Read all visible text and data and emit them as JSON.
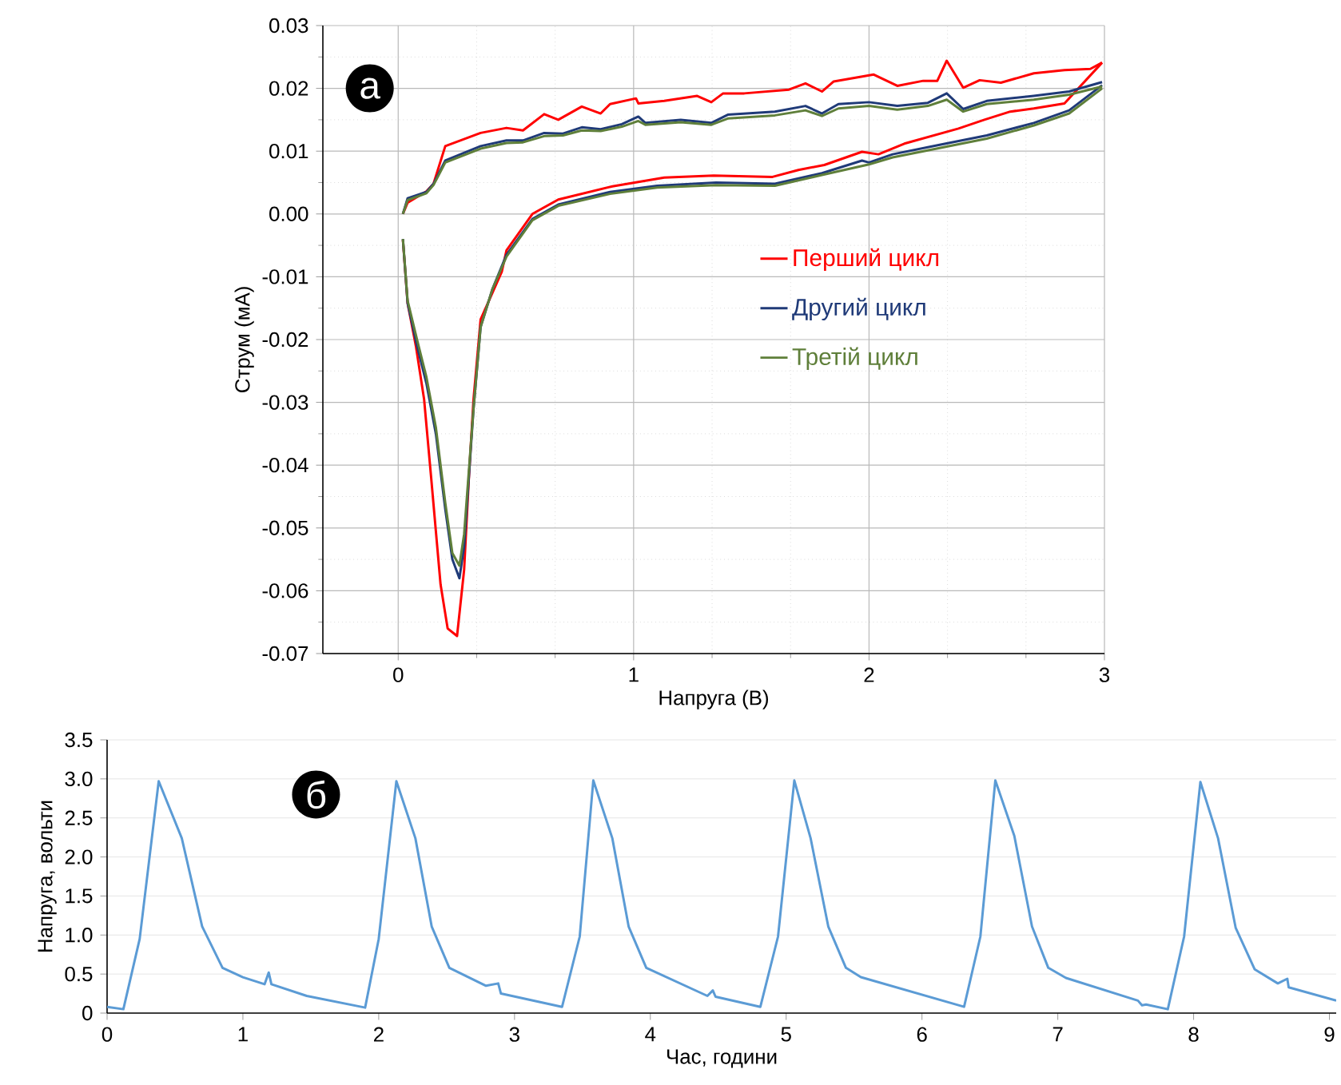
{
  "chart_data": [
    {
      "type": "line",
      "xlabel": "Напруга (В)",
      "ylabel": "Струм (мА)",
      "xlim": [
        -0.32,
        3.0
      ],
      "ylim": [
        -0.07,
        0.03
      ],
      "xticks": [
        0,
        1,
        2,
        3
      ],
      "yticks": [
        {
          "value": -0.07,
          "label": "-0.07"
        },
        {
          "value": -0.06,
          "label": "-0.06"
        },
        {
          "value": -0.05,
          "label": "-0.05"
        },
        {
          "value": -0.04,
          "label": "-0.04"
        },
        {
          "value": -0.03,
          "label": "-0.03"
        },
        {
          "value": -0.02,
          "label": "-0.02"
        },
        {
          "value": -0.01,
          "label": "-0.01"
        },
        {
          "value": 0,
          "label": "0.00"
        },
        {
          "value": 0.01,
          "label": "0.01"
        },
        {
          "value": 0.02,
          "label": "0.02"
        },
        {
          "value": 0.03,
          "label": "0.03"
        }
      ],
      "grid": true,
      "legend": "center right",
      "annotations": [
        "а"
      ],
      "series": [
        {
          "name": "Перший цикл",
          "color": "#ff0000",
          "x": [
            0.02,
            0.04,
            0.12,
            0.15,
            0.2,
            0.35,
            0.46,
            0.53,
            0.62,
            0.68,
            0.78,
            0.86,
            0.9,
            1.01,
            1.02,
            1.13,
            1.27,
            1.33,
            1.38,
            1.47,
            1.66,
            1.73,
            1.8,
            1.85,
            2.02,
            2.12,
            2.23,
            2.29,
            2.33,
            2.4,
            2.47,
            2.56,
            2.7,
            2.83,
            2.94,
            2.99
          ],
          "values": [
            0.0,
            0.0018,
            0.0036,
            0.0048,
            0.0108,
            0.0129,
            0.0137,
            0.0133,
            0.0159,
            0.015,
            0.0171,
            0.016,
            0.0175,
            0.0184,
            0.0176,
            0.018,
            0.0188,
            0.0178,
            0.0192,
            0.0192,
            0.0198,
            0.0208,
            0.0195,
            0.0211,
            0.0222,
            0.0204,
            0.0212,
            0.0212,
            0.0244,
            0.0201,
            0.0213,
            0.0209,
            0.0224,
            0.0229,
            0.0231,
            0.0241
          ]
        },
        {
          "color": "#ff0000",
          "x": [
            2.99,
            2.83,
            2.7,
            2.6,
            2.49,
            2.38,
            2.15,
            2.04,
            1.97,
            1.81,
            1.7,
            1.59,
            1.34,
            1.13,
            0.91,
            0.68,
            0.57,
            0.46,
            0.44,
            0.35,
            0.32,
            0.3,
            0.28,
            0.25,
            0.21,
            0.18,
            0.14,
            0.11,
            0.075,
            0.04,
            0.02
          ],
          "values": [
            0.0241,
            0.0176,
            0.0168,
            0.0163,
            0.015,
            0.0136,
            0.0112,
            0.0095,
            0.0099,
            0.0078,
            0.007,
            0.0059,
            0.0061,
            0.0058,
            0.0044,
            0.0023,
            0.0,
            -0.0058,
            -0.0092,
            -0.0168,
            -0.0295,
            -0.0422,
            -0.0567,
            -0.0672,
            -0.066,
            -0.059,
            -0.042,
            -0.0295,
            -0.021,
            -0.0142,
            -0.0041
          ]
        },
        {
          "name": "Другий цикл",
          "color": "#1f3a78",
          "x": [
            0.02,
            0.04,
            0.12,
            0.15,
            0.2,
            0.35,
            0.46,
            0.53,
            0.62,
            0.7,
            0.78,
            0.86,
            0.95,
            1.02,
            1.05,
            1.2,
            1.33,
            1.4,
            1.6,
            1.73,
            1.8,
            1.87,
            2.0,
            2.12,
            2.25,
            2.33,
            2.4,
            2.5,
            2.7,
            2.85,
            2.99
          ],
          "values": [
            0.0,
            0.0025,
            0.0035,
            0.0048,
            0.0085,
            0.0108,
            0.0117,
            0.0117,
            0.0129,
            0.0128,
            0.0138,
            0.0135,
            0.0143,
            0.0155,
            0.0145,
            0.015,
            0.0145,
            0.0158,
            0.0163,
            0.0172,
            0.016,
            0.0175,
            0.0178,
            0.0172,
            0.0177,
            0.0192,
            0.0167,
            0.018,
            0.0188,
            0.0195,
            0.021
          ]
        },
        {
          "color": "#1f3a78",
          "x": [
            2.99,
            2.85,
            2.7,
            2.5,
            2.3,
            2.1,
            2.0,
            1.97,
            1.8,
            1.6,
            1.35,
            1.1,
            0.9,
            0.68,
            0.57,
            0.46,
            0.4,
            0.35,
            0.32,
            0.3,
            0.28,
            0.26,
            0.23,
            0.2,
            0.16,
            0.12,
            0.08,
            0.04,
            0.02
          ],
          "values": [
            0.0205,
            0.0165,
            0.0145,
            0.0125,
            0.011,
            0.0095,
            0.0082,
            0.0085,
            0.0065,
            0.0048,
            0.005,
            0.0045,
            0.0035,
            0.0015,
            -0.0008,
            -0.0065,
            -0.012,
            -0.018,
            -0.031,
            -0.042,
            -0.053,
            -0.058,
            -0.055,
            -0.047,
            -0.035,
            -0.027,
            -0.021,
            -0.0142,
            -0.004
          ]
        },
        {
          "name": "Третій цикл",
          "color": "#5f7f3a",
          "x": [
            0.02,
            0.04,
            0.12,
            0.15,
            0.2,
            0.35,
            0.46,
            0.53,
            0.62,
            0.7,
            0.78,
            0.86,
            0.95,
            1.02,
            1.05,
            1.2,
            1.33,
            1.4,
            1.6,
            1.73,
            1.8,
            1.87,
            2.0,
            2.12,
            2.25,
            2.33,
            2.4,
            2.5,
            2.7,
            2.85,
            2.99
          ],
          "values": [
            0.0,
            0.0022,
            0.0033,
            0.0046,
            0.0082,
            0.0104,
            0.0113,
            0.0114,
            0.0124,
            0.0125,
            0.0133,
            0.0132,
            0.0139,
            0.0148,
            0.0142,
            0.0146,
            0.0142,
            0.0152,
            0.0157,
            0.0165,
            0.0156,
            0.0168,
            0.0172,
            0.0166,
            0.0172,
            0.0182,
            0.0163,
            0.0175,
            0.0182,
            0.019,
            0.0203
          ]
        },
        {
          "color": "#5f7f3a",
          "x": [
            2.99,
            2.85,
            2.7,
            2.5,
            2.3,
            2.1,
            2.0,
            1.8,
            1.6,
            1.35,
            1.1,
            0.9,
            0.68,
            0.57,
            0.46,
            0.4,
            0.35,
            0.32,
            0.3,
            0.28,
            0.26,
            0.23,
            0.2,
            0.16,
            0.12,
            0.08,
            0.04,
            0.02
          ],
          "values": [
            0.02,
            0.016,
            0.0141,
            0.012,
            0.0105,
            0.009,
            0.0079,
            0.0062,
            0.0045,
            0.0046,
            0.0042,
            0.0032,
            0.0013,
            -0.001,
            -0.0068,
            -0.012,
            -0.018,
            -0.031,
            -0.041,
            -0.051,
            -0.056,
            -0.054,
            -0.046,
            -0.034,
            -0.026,
            -0.02,
            -0.0138,
            -0.004
          ]
        }
      ]
    },
    {
      "type": "line",
      "xlabel": "Час, години",
      "ylabel": "Напруга, вольти",
      "xlim": [
        0,
        9.05
      ],
      "ylim": [
        0,
        3.5
      ],
      "xticks": [
        0,
        1,
        2,
        3,
        4,
        5,
        6,
        7,
        8,
        9
      ],
      "yticks": [
        0,
        {
          "value": 0.5,
          "label": "0.5"
        },
        {
          "value": 1,
          "label": "1.0"
        },
        {
          "value": 1.5,
          "label": "1.5"
        },
        {
          "value": 2,
          "label": "2.0"
        },
        {
          "value": 2.5,
          "label": "2.5"
        },
        {
          "value": 3,
          "label": "3.0"
        },
        {
          "value": 3.5,
          "label": "3.5"
        }
      ],
      "grid": "y",
      "annotations": [
        "б"
      ],
      "series": [
        {
          "color": "#5b9bd5",
          "x": [
            0,
            0.12,
            0.24,
            0.38,
            0.55,
            0.7,
            0.85,
            1.0,
            1.16,
            1.19,
            1.21,
            1.47,
            1.9,
            2.0,
            2.13,
            2.27,
            2.39,
            2.52,
            2.79,
            2.88,
            2.9,
            3.35,
            3.48,
            3.58,
            3.72,
            3.84,
            3.97,
            4.42,
            4.46,
            4.48,
            4.81,
            4.94,
            5.06,
            5.18,
            5.31,
            5.44,
            5.55,
            6.31,
            6.43,
            6.54,
            6.68,
            6.81,
            6.93,
            7.06,
            7.59,
            7.62,
            7.65,
            7.81,
            7.93,
            8.05,
            8.18,
            8.31,
            8.45,
            8.62,
            8.69,
            8.7,
            9.05
          ],
          "values": [
            0.08,
            0.05,
            0.95,
            2.97,
            2.24,
            1.11,
            0.58,
            0.46,
            0.37,
            0.52,
            0.37,
            0.22,
            0.07,
            0.95,
            2.97,
            2.24,
            1.11,
            0.58,
            0.35,
            0.38,
            0.25,
            0.08,
            0.98,
            2.98,
            2.24,
            1.11,
            0.58,
            0.22,
            0.29,
            0.21,
            0.08,
            0.98,
            2.98,
            2.24,
            1.11,
            0.58,
            0.46,
            0.08,
            0.98,
            2.98,
            2.27,
            1.11,
            0.58,
            0.45,
            0.16,
            0.1,
            0.11,
            0.05,
            0.98,
            2.96,
            2.24,
            1.09,
            0.56,
            0.38,
            0.44,
            0.33,
            0.16
          ]
        }
      ]
    }
  ]
}
